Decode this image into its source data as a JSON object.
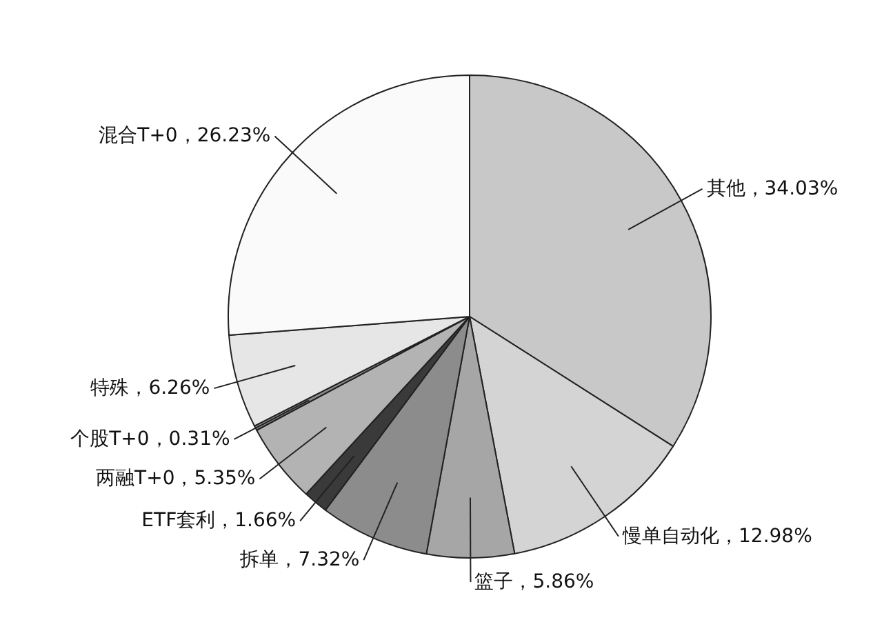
{
  "chart_data": {
    "type": "pie",
    "categories": [
      "其他",
      "慢单自动化",
      "篮子",
      "拆单",
      "ETF套利",
      "两融T+0",
      "个股T+0",
      "特殊",
      "混合T+0"
    ],
    "values": [
      34.03,
      12.98,
      5.86,
      7.32,
      1.66,
      5.35,
      0.31,
      6.26,
      26.23
    ],
    "value_labels": [
      "34.03%",
      "12.98%",
      "5.86%",
      "7.32%",
      "1.66%",
      "5.35%",
      "0.31%",
      "6.26%",
      "26.23%"
    ],
    "colors": [
      "#c8c8c8",
      "#d4d4d4",
      "#a6a6a6",
      "#8c8c8c",
      "#3a3a3a",
      "#b3b3b3",
      "#8c8c8c",
      "#e6e6e6",
      "#fafafa"
    ]
  }
}
